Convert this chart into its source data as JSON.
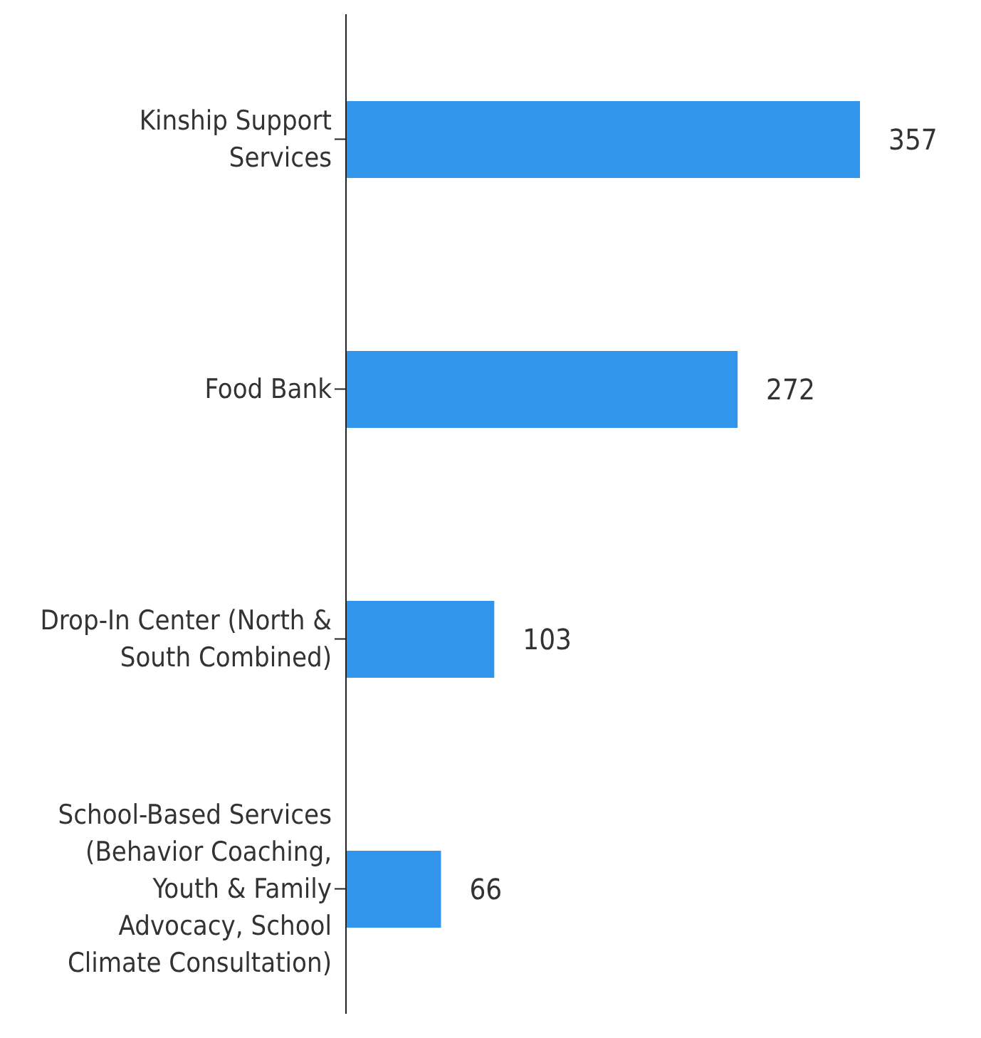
{
  "chart_data": {
    "type": "bar",
    "orientation": "horizontal",
    "categories": [
      "Kinship Support Services",
      "Food Bank",
      "Drop-In Center (North & South Combined)",
      "School-Based Services (Behavior Coaching, Youth & Family Advocacy, School Climate Consultation)"
    ],
    "values": [
      357,
      272,
      103,
      66
    ],
    "color": "#3196eb",
    "data_labels": true,
    "grid": false,
    "legend": false
  }
}
